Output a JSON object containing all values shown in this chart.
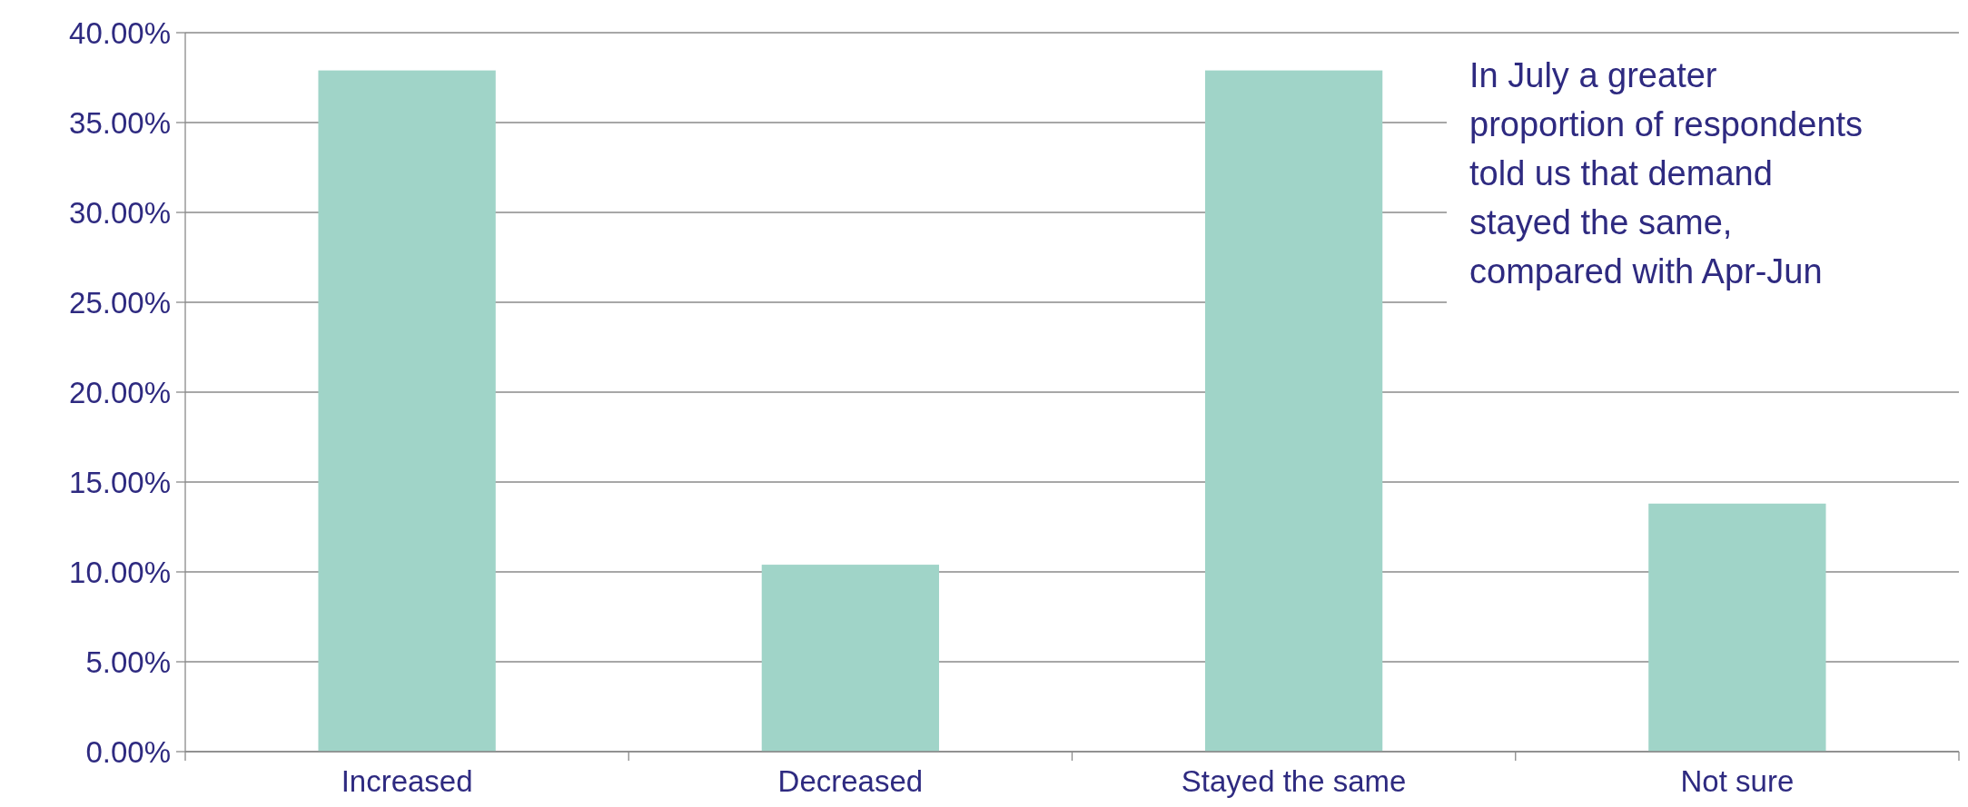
{
  "chart_data": {
    "type": "bar",
    "categories": [
      "Increased",
      "Decreased",
      "Stayed the same",
      "Not sure"
    ],
    "values": [
      37.9,
      10.4,
      37.9,
      13.8
    ],
    "color": "#a0d4c8",
    "ylim": [
      0,
      40
    ],
    "yticks": [
      {
        "value": 0,
        "label": "0.00%"
      },
      {
        "value": 5,
        "label": "5.00%"
      },
      {
        "value": 10,
        "label": "10.00%"
      },
      {
        "value": 15,
        "label": "15.00%"
      },
      {
        "value": 20,
        "label": "20.00%"
      },
      {
        "value": 25,
        "label": "25.00%"
      },
      {
        "value": 30,
        "label": "30.00%"
      },
      {
        "value": 35,
        "label": "35.00%"
      },
      {
        "value": 40,
        "label": "40.00%"
      }
    ],
    "grid": "y",
    "annotations": [
      "In July a greater\nproportion of respondents\ntold us that demand\nstayed the same,\ncompared with Apr-Jun"
    ]
  }
}
